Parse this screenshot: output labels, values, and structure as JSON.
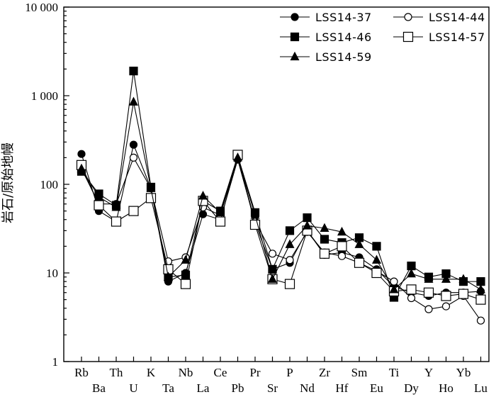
{
  "chart_data": {
    "type": "line",
    "y_scale": "log",
    "ylim": [
      1,
      10000
    ],
    "ylabel": "岩石/原始地幔",
    "yticks": [
      {
        "value": 1,
        "label": "1"
      },
      {
        "value": 10,
        "label": "10"
      },
      {
        "value": 100,
        "label": "100"
      },
      {
        "value": 1000,
        "label": "1 000"
      },
      {
        "value": 10000,
        "label": "10 000"
      }
    ],
    "categories": [
      "Rb",
      "Ba",
      "Th",
      "U",
      "K",
      "Ta",
      "Nb",
      "La",
      "Ce",
      "Pb",
      "Pr",
      "Sr",
      "P",
      "Nd",
      "Zr",
      "Hf",
      "Sm",
      "Eu",
      "Ti",
      "Dy",
      "Y",
      "Ho",
      "Yb",
      "Lu"
    ],
    "legend_position": "top-right",
    "grid": false,
    "series": [
      {
        "name": "LSS14-37",
        "marker": "filled-circle",
        "values": [
          220,
          50,
          38,
          280,
          90,
          8,
          10,
          46,
          40,
          190,
          37,
          11,
          13,
          30,
          16,
          17,
          15,
          11,
          7,
          6,
          5.5,
          6,
          6,
          6.2
        ]
      },
      {
        "name": "LSS14-44",
        "marker": "open-circle",
        "values": [
          150,
          60,
          60,
          200,
          90,
          13.5,
          15,
          55,
          45,
          200,
          38,
          16.5,
          14,
          29,
          17,
          15.5,
          13,
          10.5,
          8,
          5.2,
          3.9,
          4.2,
          5.5,
          2.9
        ]
      },
      {
        "name": "LSS14-46",
        "marker": "filled-square",
        "values": [
          140,
          78,
          58,
          1900,
          93,
          9,
          9.5,
          65,
          50,
          210,
          48,
          11,
          30,
          42,
          24,
          22,
          25,
          20,
          5.3,
          12,
          9,
          9.8,
          8,
          8
        ]
      },
      {
        "name": "LSS14-57",
        "marker": "open-square",
        "values": [
          165,
          58,
          38,
          50,
          70,
          11,
          7.5,
          65,
          38,
          215,
          35,
          8.5,
          7.5,
          30,
          16.5,
          20,
          13,
          10,
          6.2,
          6.5,
          6,
          5.5,
          5.8,
          5
        ]
      },
      {
        "name": "LSS14-59",
        "marker": "filled-triangle",
        "values": [
          150,
          72,
          55,
          850,
          90,
          9,
          14,
          74,
          48,
          200,
          45,
          8.5,
          21,
          34,
          32,
          29,
          21,
          14,
          6.5,
          9.8,
          8.5,
          8.5,
          8.5,
          6.5
        ]
      }
    ]
  }
}
